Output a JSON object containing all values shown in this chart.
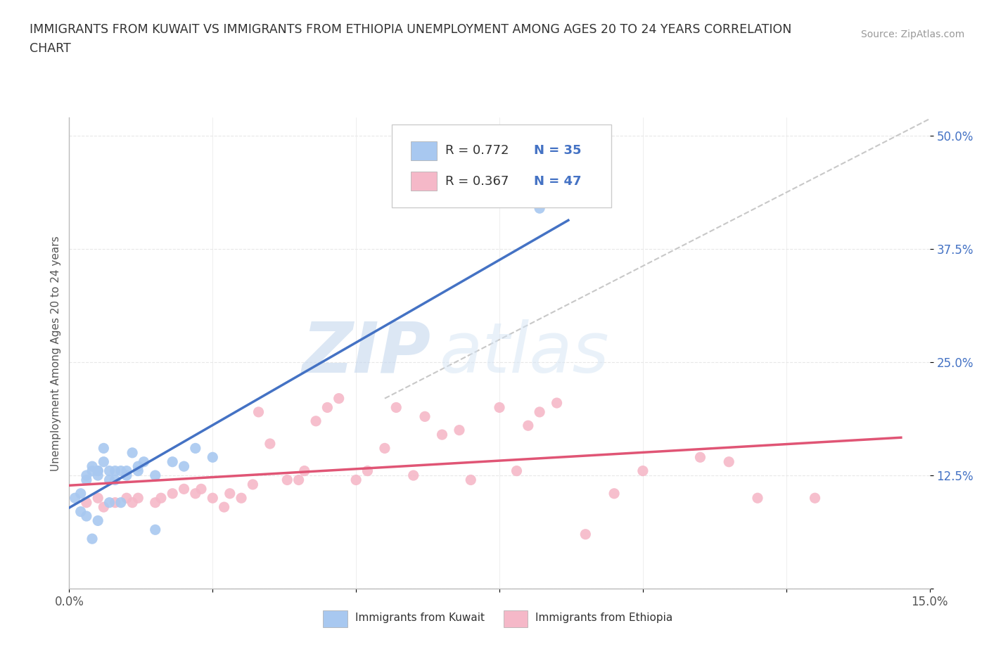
{
  "title_line1": "IMMIGRANTS FROM KUWAIT VS IMMIGRANTS FROM ETHIOPIA UNEMPLOYMENT AMONG AGES 20 TO 24 YEARS CORRELATION",
  "title_line2": "CHART",
  "source_text": "Source: ZipAtlas.com",
  "ylabel": "Unemployment Among Ages 20 to 24 years",
  "xlim": [
    0.0,
    0.15
  ],
  "ylim": [
    0.0,
    0.52
  ],
  "xticks": [
    0.0,
    0.025,
    0.05,
    0.075,
    0.1,
    0.125,
    0.15
  ],
  "xticklabels": [
    "0.0%",
    "",
    "",
    "",
    "",
    "",
    "15.0%"
  ],
  "ytick_positions": [
    0.0,
    0.125,
    0.25,
    0.375,
    0.5
  ],
  "yticklabels": [
    "",
    "12.5%",
    "25.0%",
    "37.5%",
    "50.0%"
  ],
  "kuwait_color": "#a8c8f0",
  "ethiopia_color": "#f5b8c8",
  "kuwait_line_color": "#4472c4",
  "ethiopia_line_color": "#e05575",
  "trend_line_color": "#c8c8c8",
  "R_kuwait": 0.772,
  "N_kuwait": 35,
  "R_ethiopia": 0.367,
  "N_ethiopia": 47,
  "legend_N_color": "#4472c4",
  "watermark_zip": "ZIP",
  "watermark_atlas": "atlas",
  "kuwait_x": [
    0.001,
    0.002,
    0.002,
    0.003,
    0.003,
    0.003,
    0.004,
    0.004,
    0.004,
    0.005,
    0.005,
    0.005,
    0.005,
    0.006,
    0.006,
    0.007,
    0.007,
    0.007,
    0.008,
    0.008,
    0.009,
    0.009,
    0.01,
    0.01,
    0.011,
    0.012,
    0.012,
    0.013,
    0.015,
    0.015,
    0.018,
    0.02,
    0.022,
    0.025,
    0.082
  ],
  "kuwait_y": [
    0.1,
    0.085,
    0.105,
    0.12,
    0.125,
    0.08,
    0.13,
    0.135,
    0.055,
    0.13,
    0.13,
    0.125,
    0.075,
    0.14,
    0.155,
    0.12,
    0.13,
    0.095,
    0.12,
    0.13,
    0.13,
    0.095,
    0.13,
    0.125,
    0.15,
    0.135,
    0.13,
    0.14,
    0.125,
    0.065,
    0.14,
    0.135,
    0.155,
    0.145,
    0.42
  ],
  "ethiopia_x": [
    0.003,
    0.005,
    0.006,
    0.008,
    0.01,
    0.011,
    0.012,
    0.015,
    0.016,
    0.018,
    0.02,
    0.022,
    0.023,
    0.025,
    0.027,
    0.028,
    0.03,
    0.032,
    0.033,
    0.035,
    0.038,
    0.04,
    0.041,
    0.043,
    0.045,
    0.047,
    0.05,
    0.052,
    0.055,
    0.057,
    0.06,
    0.062,
    0.065,
    0.068,
    0.07,
    0.075,
    0.078,
    0.08,
    0.082,
    0.085,
    0.09,
    0.095,
    0.1,
    0.11,
    0.115,
    0.12,
    0.13
  ],
  "ethiopia_y": [
    0.095,
    0.1,
    0.09,
    0.095,
    0.1,
    0.095,
    0.1,
    0.095,
    0.1,
    0.105,
    0.11,
    0.105,
    0.11,
    0.1,
    0.09,
    0.105,
    0.1,
    0.115,
    0.195,
    0.16,
    0.12,
    0.12,
    0.13,
    0.185,
    0.2,
    0.21,
    0.12,
    0.13,
    0.155,
    0.2,
    0.125,
    0.19,
    0.17,
    0.175,
    0.12,
    0.2,
    0.13,
    0.18,
    0.195,
    0.205,
    0.06,
    0.105,
    0.13,
    0.145,
    0.14,
    0.1,
    0.1
  ],
  "background_color": "#ffffff",
  "plot_bg_color": "#ffffff",
  "grid_color": "#e8e8e8"
}
